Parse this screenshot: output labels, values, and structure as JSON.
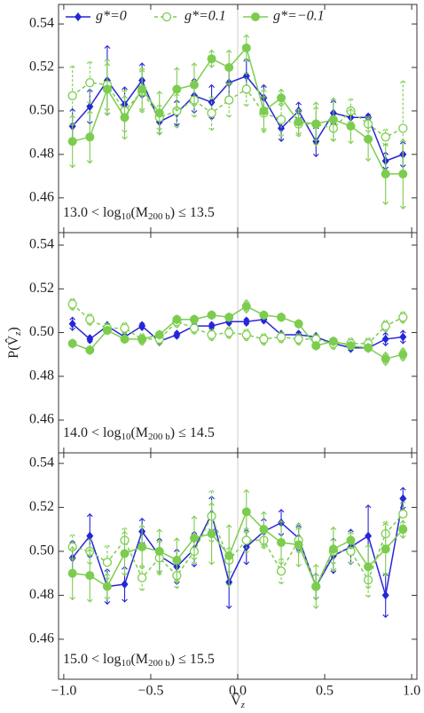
{
  "chart_data": [
    {
      "type": "line",
      "x": [
        -0.95,
        -0.85,
        -0.75,
        -0.65,
        -0.55,
        -0.45,
        -0.35,
        -0.25,
        -0.15,
        -0.05,
        0.05,
        0.15,
        0.25,
        0.35,
        0.45,
        0.55,
        0.65,
        0.75,
        0.85,
        0.95
      ],
      "xlim": [
        -1.03,
        1.03
      ],
      "ylim": [
        0.444,
        0.549
      ],
      "yticks": [
        0.46,
        0.48,
        {
          "value": 0.5,
          "label": "0.50"
        },
        0.52,
        0.54
      ],
      "xticks": [
        {
          "value": -1,
          "label": "−1.0"
        },
        {
          "value": -0.5,
          "label": "−0.5"
        },
        {
          "value": 0,
          "label": "0.0"
        },
        0.5,
        {
          "value": 1,
          "label": "1.0"
        }
      ],
      "annotation": [
        "13.0 < log",
        "10",
        "(M",
        "200 b",
        ") ≤ 13.5"
      ],
      "series": [
        {
          "name": "g*=0",
          "color": "#2626d9",
          "marker": "diamond",
          "dash": false,
          "values": [
            0.493,
            0.502,
            0.514,
            0.503,
            0.514,
            0.495,
            0.499,
            0.507,
            0.504,
            0.513,
            0.516,
            0.506,
            0.492,
            0.5,
            0.486,
            0.499,
            0.497,
            0.497,
            0.477,
            0.48
          ],
          "errors": [
            0.008,
            0.008,
            0.016,
            0.008,
            0.008,
            0.006,
            0.006,
            0.008,
            0.008,
            0.008,
            0.008,
            0.006,
            0.006,
            0.004,
            0.007,
            0.006,
            0.004,
            0.002,
            0.004,
            0.006
          ]
        },
        {
          "name": "g*=0.1",
          "color": "#7ccd4f",
          "marker": "open-circle",
          "dash": true,
          "values": [
            0.507,
            0.513,
            0.512,
            0.5,
            0.509,
            0.497,
            0.5,
            0.505,
            0.499,
            0.505,
            0.51,
            0.499,
            0.496,
            0.494,
            0.494,
            0.492,
            0.5,
            0.494,
            0.488,
            0.492
          ],
          "errors": [
            0.014,
            0.01,
            0.012,
            0.01,
            0.01,
            0.006,
            0.008,
            0.008,
            0.008,
            0.008,
            0.008,
            0.008,
            0.008,
            0.006,
            0.008,
            0.006,
            0.006,
            0.004,
            0.004,
            0.022
          ]
        },
        {
          "name": "g*=−0.1",
          "color": "#7ccd4f",
          "marker": "circle",
          "dash": false,
          "values": [
            0.486,
            0.488,
            0.51,
            0.497,
            0.51,
            0.499,
            0.51,
            0.512,
            0.524,
            0.52,
            0.529,
            0.5,
            0.506,
            0.495,
            0.494,
            0.496,
            0.493,
            0.487,
            0.471,
            0.471
          ],
          "errors": [
            0.012,
            0.012,
            0.012,
            0.01,
            0.01,
            0.01,
            0.01,
            0.01,
            0.004,
            0.008,
            0.006,
            0.01,
            0.004,
            0.006,
            0.01,
            0.01,
            0.008,
            0.01,
            0.014,
            0.016
          ]
        }
      ]
    },
    {
      "type": "line",
      "x": [
        -0.95,
        -0.85,
        -0.75,
        -0.65,
        -0.55,
        -0.45,
        -0.35,
        -0.25,
        -0.15,
        -0.05,
        0.05,
        0.15,
        0.25,
        0.35,
        0.45,
        0.55,
        0.65,
        0.75,
        0.85,
        0.95
      ],
      "xlim": [
        -1.03,
        1.03
      ],
      "ylim": [
        0.445,
        0.5457
      ],
      "yticks": [
        0.46,
        0.48,
        {
          "value": 0.5,
          "label": "0.50"
        },
        0.52,
        0.54
      ],
      "xticks": [
        {
          "value": -1,
          "label": "−1.0"
        },
        {
          "value": -0.5,
          "label": "−0.5"
        },
        {
          "value": 0,
          "label": "0.0"
        },
        0.5,
        {
          "value": 1,
          "label": "1.0"
        }
      ],
      "y_label": [
        "P(V̂",
        "z",
        ")"
      ],
      "annotation": [
        "14.0 < log",
        "10",
        "(M",
        "200 b",
        ") ≤ 14.5"
      ],
      "series": [
        {
          "name": "g*=0",
          "color": "#2626d9",
          "marker": "diamond",
          "dash": false,
          "values": [
            0.504,
            0.497,
            0.503,
            0.498,
            0.503,
            0.496,
            0.499,
            0.503,
            0.503,
            0.505,
            0.505,
            0.506,
            0.499,
            0.499,
            0.498,
            0.495,
            0.493,
            0.493,
            0.497,
            0.498
          ],
          "errors": [
            0.003,
            0.002,
            0.002,
            0.002,
            0.002,
            0.002,
            0.002,
            0.002,
            0.002,
            0.002,
            0.002,
            0.002,
            0.002,
            0.002,
            0.002,
            0.002,
            0.002,
            0.002,
            0.003,
            0.003
          ]
        },
        {
          "name": "g*=0.1",
          "color": "#7ccd4f",
          "marker": "open-circle",
          "dash": true,
          "values": [
            0.513,
            0.506,
            0.502,
            0.502,
            0.497,
            0.497,
            0.505,
            0.502,
            0.499,
            0.5,
            0.499,
            0.497,
            0.498,
            0.497,
            0.497,
            0.495,
            0.495,
            0.495,
            0.503,
            0.507
          ],
          "errors": [
            0.003,
            0.003,
            0.003,
            0.003,
            0.003,
            0.003,
            0.003,
            0.003,
            0.003,
            0.003,
            0.003,
            0.003,
            0.003,
            0.003,
            0.003,
            0.003,
            0.003,
            0.003,
            0.003,
            0.003
          ]
        },
        {
          "name": "g*=−0.1",
          "color": "#7ccd4f",
          "marker": "circle",
          "dash": false,
          "values": [
            0.495,
            0.492,
            0.501,
            0.497,
            0.497,
            0.499,
            0.506,
            0.506,
            0.508,
            0.507,
            0.512,
            0.508,
            0.507,
            0.504,
            0.494,
            0.496,
            0.494,
            0.493,
            0.488,
            0.49
          ],
          "errors": [
            0.002,
            0.002,
            0.002,
            0.002,
            0.002,
            0.002,
            0.002,
            0.002,
            0.002,
            0.002,
            0.003,
            0.002,
            0.002,
            0.002,
            0.002,
            0.002,
            0.002,
            0.002,
            0.003,
            0.003
          ]
        }
      ]
    },
    {
      "type": "line",
      "x": [
        -0.95,
        -0.85,
        -0.75,
        -0.65,
        -0.55,
        -0.45,
        -0.35,
        -0.25,
        -0.15,
        -0.05,
        0.05,
        0.15,
        0.25,
        0.35,
        0.45,
        0.55,
        0.65,
        0.75,
        0.85,
        0.95
      ],
      "xlim": [
        -1.03,
        1.03
      ],
      "ylim": [
        0.4418,
        0.5448
      ],
      "yticks": [
        0.46,
        0.48,
        {
          "value": 0.5,
          "label": "0.50"
        },
        0.52,
        0.54
      ],
      "xticks": [
        {
          "value": -1,
          "label": "−1.0"
        },
        {
          "value": -0.5,
          "label": "−0.5"
        },
        {
          "value": 0,
          "label": "0.0"
        },
        0.5,
        {
          "value": 1,
          "label": "1.0"
        }
      ],
      "x_label": [
        "V̂",
        "z"
      ],
      "annotation": [
        "15.0 < log",
        "10",
        "(M",
        "200 b",
        ") ≤ 15.5"
      ],
      "series": [
        {
          "name": "g*=0",
          "color": "#2626d9",
          "marker": "diamond",
          "dash": false,
          "values": [
            0.497,
            0.507,
            0.484,
            0.485,
            0.509,
            0.498,
            0.493,
            0.501,
            0.517,
            0.486,
            0.502,
            0.509,
            0.513,
            0.506,
            0.484,
            0.498,
            0.502,
            0.507,
            0.48,
            0.524
          ],
          "errors": [
            0.008,
            0.01,
            0.008,
            0.008,
            0.006,
            0.008,
            0.008,
            0.008,
            0.008,
            0.012,
            0.008,
            0.006,
            0.006,
            0.006,
            0.006,
            0.008,
            0.008,
            0.014,
            0.01,
            0.005
          ]
        },
        {
          "name": "g*=0.1",
          "color": "#7ccd4f",
          "marker": "open-circle",
          "dash": true,
          "values": [
            0.502,
            0.5,
            0.495,
            0.505,
            0.488,
            0.497,
            0.489,
            0.5,
            0.516,
            0.496,
            0.505,
            0.505,
            0.491,
            0.505,
            0.484,
            0.5,
            0.5,
            0.487,
            0.508,
            0.517
          ],
          "errors": [
            0.006,
            0.006,
            0.008,
            0.006,
            0.006,
            0.008,
            0.006,
            0.006,
            0.012,
            0.006,
            0.006,
            0.004,
            0.006,
            0.006,
            0.006,
            0.006,
            0.006,
            0.008,
            0.006,
            0.006
          ]
        },
        {
          "name": "g*=−0.1",
          "color": "#7ccd4f",
          "marker": "circle",
          "dash": false,
          "values": [
            0.49,
            0.489,
            0.484,
            0.499,
            0.502,
            0.5,
            0.496,
            0.506,
            0.508,
            0.498,
            0.518,
            0.51,
            0.504,
            0.503,
            0.484,
            0.501,
            0.505,
            0.493,
            0.501,
            0.51
          ],
          "errors": [
            0.012,
            0.012,
            0.006,
            0.01,
            0.01,
            0.01,
            0.01,
            0.01,
            0.014,
            0.014,
            0.01,
            0.008,
            0.01,
            0.01,
            0.01,
            0.01,
            0.004,
            0.01,
            0.012,
            0.004
          ]
        }
      ]
    }
  ]
}
